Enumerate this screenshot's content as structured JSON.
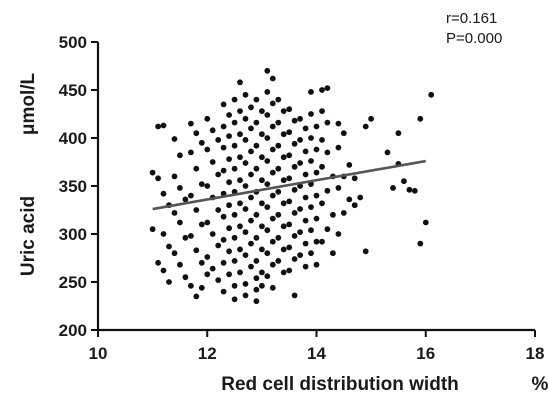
{
  "chart_data": {
    "type": "scatter",
    "xlabel": "Red cell distribution width",
    "xunit": "%",
    "ylabel": "Uric acid",
    "yunit": "μmol/L",
    "xlim": [
      10,
      18
    ],
    "ylim": [
      200,
      500
    ],
    "xticks": [
      "10",
      "12",
      "14",
      "16",
      "18"
    ],
    "yticks": [
      "200",
      "250",
      "300",
      "350",
      "400",
      "450",
      "500"
    ],
    "annotations": [
      "r=0.161",
      "P=0.000"
    ],
    "point_color": "#111111",
    "line_color": "#555555",
    "trendline": {
      "x": [
        11.0,
        16.0
      ],
      "y": [
        326,
        376
      ]
    },
    "points": [
      [
        11.1,
        412
      ],
      [
        11.2,
        413
      ],
      [
        11.0,
        364
      ],
      [
        11.1,
        358
      ],
      [
        11.2,
        342
      ],
      [
        11.3,
        330
      ],
      [
        11.0,
        305
      ],
      [
        11.2,
        300
      ],
      [
        11.3,
        287
      ],
      [
        11.1,
        270
      ],
      [
        11.2,
        262
      ],
      [
        11.3,
        250
      ],
      [
        11.4,
        399
      ],
      [
        11.5,
        382
      ],
      [
        11.4,
        360
      ],
      [
        11.5,
        348
      ],
      [
        11.6,
        336
      ],
      [
        11.4,
        322
      ],
      [
        11.5,
        312
      ],
      [
        11.6,
        296
      ],
      [
        11.4,
        280
      ],
      [
        11.5,
        268
      ],
      [
        11.6,
        255
      ],
      [
        11.7,
        246
      ],
      [
        11.8,
        235
      ],
      [
        11.7,
        415
      ],
      [
        11.8,
        405
      ],
      [
        11.9,
        395
      ],
      [
        11.7,
        385
      ],
      [
        11.8,
        368
      ],
      [
        11.9,
        352
      ],
      [
        11.7,
        340
      ],
      [
        11.8,
        325
      ],
      [
        11.9,
        310
      ],
      [
        11.7,
        298
      ],
      [
        11.8,
        283
      ],
      [
        11.9,
        270
      ],
      [
        12.0,
        258
      ],
      [
        11.9,
        244
      ],
      [
        12.0,
        420
      ],
      [
        12.1,
        408
      ],
      [
        12.2,
        398
      ],
      [
        12.0,
        388
      ],
      [
        12.1,
        375
      ],
      [
        12.2,
        362
      ],
      [
        12.0,
        350
      ],
      [
        12.1,
        338
      ],
      [
        12.2,
        325
      ],
      [
        12.0,
        312
      ],
      [
        12.1,
        300
      ],
      [
        12.2,
        288
      ],
      [
        12.0,
        276
      ],
      [
        12.1,
        264
      ],
      [
        12.2,
        252
      ],
      [
        12.3,
        240
      ],
      [
        12.3,
        435
      ],
      [
        12.4,
        424
      ],
      [
        12.3,
        412
      ],
      [
        12.4,
        402
      ],
      [
        12.3,
        390
      ],
      [
        12.4,
        378
      ],
      [
        12.3,
        366
      ],
      [
        12.4,
        354
      ],
      [
        12.3,
        342
      ],
      [
        12.4,
        330
      ],
      [
        12.3,
        318
      ],
      [
        12.4,
        306
      ],
      [
        12.3,
        294
      ],
      [
        12.4,
        282
      ],
      [
        12.3,
        270
      ],
      [
        12.4,
        258
      ],
      [
        12.5,
        246
      ],
      [
        12.5,
        232
      ],
      [
        12.6,
        458
      ],
      [
        12.5,
        440
      ],
      [
        12.6,
        428
      ],
      [
        12.5,
        416
      ],
      [
        12.6,
        404
      ],
      [
        12.5,
        392
      ],
      [
        12.6,
        380
      ],
      [
        12.5,
        368
      ],
      [
        12.6,
        356
      ],
      [
        12.5,
        344
      ],
      [
        12.6,
        332
      ],
      [
        12.5,
        320
      ],
      [
        12.6,
        308
      ],
      [
        12.5,
        296
      ],
      [
        12.6,
        284
      ],
      [
        12.5,
        272
      ],
      [
        12.6,
        260
      ],
      [
        12.7,
        248
      ],
      [
        12.7,
        236
      ],
      [
        12.7,
        445
      ],
      [
        12.8,
        432
      ],
      [
        12.7,
        420
      ],
      [
        12.8,
        410
      ],
      [
        12.7,
        398
      ],
      [
        12.8,
        386
      ],
      [
        12.7,
        374
      ],
      [
        12.8,
        362
      ],
      [
        12.7,
        350
      ],
      [
        12.8,
        338
      ],
      [
        12.7,
        326
      ],
      [
        12.8,
        314
      ],
      [
        12.7,
        302
      ],
      [
        12.8,
        290
      ],
      [
        12.7,
        278
      ],
      [
        12.8,
        266
      ],
      [
        12.9,
        254
      ],
      [
        12.9,
        242
      ],
      [
        12.9,
        440
      ],
      [
        13.0,
        428
      ],
      [
        12.9,
        416
      ],
      [
        13.0,
        404
      ],
      [
        12.9,
        392
      ],
      [
        13.0,
        380
      ],
      [
        12.9,
        368
      ],
      [
        13.0,
        356
      ],
      [
        12.9,
        344
      ],
      [
        13.0,
        332
      ],
      [
        12.9,
        320
      ],
      [
        13.0,
        308
      ],
      [
        12.9,
        296
      ],
      [
        13.0,
        284
      ],
      [
        12.9,
        272
      ],
      [
        13.0,
        260
      ],
      [
        13.0,
        246
      ],
      [
        12.9,
        230
      ],
      [
        13.1,
        470
      ],
      [
        13.2,
        462
      ],
      [
        13.1,
        448
      ],
      [
        13.2,
        436
      ],
      [
        13.1,
        424
      ],
      [
        13.2,
        412
      ],
      [
        13.1,
        400
      ],
      [
        13.2,
        388
      ],
      [
        13.1,
        376
      ],
      [
        13.2,
        364
      ],
      [
        13.1,
        352
      ],
      [
        13.2,
        340
      ],
      [
        13.1,
        328
      ],
      [
        13.2,
        316
      ],
      [
        13.1,
        304
      ],
      [
        13.2,
        292
      ],
      [
        13.1,
        280
      ],
      [
        13.2,
        268
      ],
      [
        13.1,
        256
      ],
      [
        13.2,
        244
      ],
      [
        13.3,
        440
      ],
      [
        13.4,
        428
      ],
      [
        13.3,
        416
      ],
      [
        13.4,
        404
      ],
      [
        13.3,
        392
      ],
      [
        13.4,
        380
      ],
      [
        13.3,
        368
      ],
      [
        13.4,
        356
      ],
      [
        13.3,
        344
      ],
      [
        13.4,
        332
      ],
      [
        13.3,
        320
      ],
      [
        13.4,
        308
      ],
      [
        13.3,
        296
      ],
      [
        13.4,
        284
      ],
      [
        13.3,
        272
      ],
      [
        13.4,
        260
      ],
      [
        13.5,
        430
      ],
      [
        13.6,
        418
      ],
      [
        13.5,
        406
      ],
      [
        13.6,
        394
      ],
      [
        13.5,
        382
      ],
      [
        13.6,
        370
      ],
      [
        13.5,
        358
      ],
      [
        13.6,
        346
      ],
      [
        13.5,
        334
      ],
      [
        13.6,
        322
      ],
      [
        13.5,
        310
      ],
      [
        13.6,
        298
      ],
      [
        13.5,
        286
      ],
      [
        13.6,
        274
      ],
      [
        13.5,
        262
      ],
      [
        13.6,
        236
      ],
      [
        13.7,
        420
      ],
      [
        13.8,
        410
      ],
      [
        13.7,
        398
      ],
      [
        13.8,
        386
      ],
      [
        13.7,
        374
      ],
      [
        13.8,
        362
      ],
      [
        13.7,
        350
      ],
      [
        13.8,
        338
      ],
      [
        13.7,
        326
      ],
      [
        13.8,
        314
      ],
      [
        13.7,
        302
      ],
      [
        13.8,
        290
      ],
      [
        13.7,
        278
      ],
      [
        13.8,
        266
      ],
      [
        13.9,
        448
      ],
      [
        13.9,
        425
      ],
      [
        14.0,
        412
      ],
      [
        13.9,
        400
      ],
      [
        14.0,
        388
      ],
      [
        13.9,
        376
      ],
      [
        14.0,
        364
      ],
      [
        13.9,
        352
      ],
      [
        14.0,
        340
      ],
      [
        13.9,
        328
      ],
      [
        14.0,
        316
      ],
      [
        13.9,
        304
      ],
      [
        14.0,
        292
      ],
      [
        13.9,
        280
      ],
      [
        14.0,
        268
      ],
      [
        14.1,
        450
      ],
      [
        14.2,
        452
      ],
      [
        14.1,
        428
      ],
      [
        14.2,
        416
      ],
      [
        14.1,
        398
      ],
      [
        14.2,
        385
      ],
      [
        14.1,
        370
      ],
      [
        14.3,
        360
      ],
      [
        14.2,
        345
      ],
      [
        14.1,
        332
      ],
      [
        14.3,
        320
      ],
      [
        14.2,
        305
      ],
      [
        14.1,
        292
      ],
      [
        14.3,
        280
      ],
      [
        14.4,
        415
      ],
      [
        14.5,
        405
      ],
      [
        14.4,
        390
      ],
      [
        14.6,
        372
      ],
      [
        14.5,
        360
      ],
      [
        14.4,
        348
      ],
      [
        14.6,
        336
      ],
      [
        14.5,
        322
      ],
      [
        14.4,
        300
      ],
      [
        14.7,
        358
      ],
      [
        14.7,
        330
      ],
      [
        14.8,
        338
      ],
      [
        14.9,
        282
      ],
      [
        14.9,
        412
      ],
      [
        15.0,
        420
      ],
      [
        15.3,
        385
      ],
      [
        15.4,
        348
      ],
      [
        15.5,
        373
      ],
      [
        15.6,
        355
      ],
      [
        15.7,
        346
      ],
      [
        15.8,
        345
      ],
      [
        15.9,
        290
      ],
      [
        16.0,
        312
      ],
      [
        16.1,
        445
      ],
      [
        15.9,
        420
      ],
      [
        15.5,
        405
      ]
    ]
  }
}
